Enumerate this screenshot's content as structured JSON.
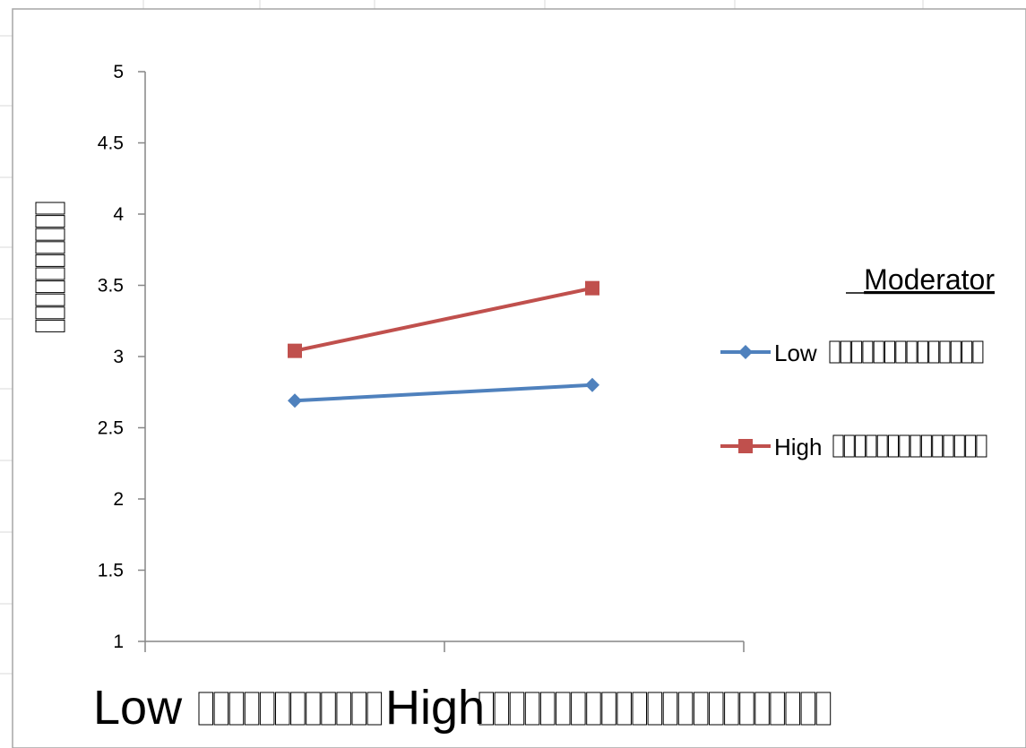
{
  "chart_data": {
    "type": "line",
    "title": "",
    "xlabel": "",
    "ylabel": "",
    "categories": [
      "Low",
      "High"
    ],
    "ylim": [
      1,
      5
    ],
    "yticks": [
      1,
      1.5,
      2,
      2.5,
      3,
      3.5,
      4,
      4.5,
      5
    ],
    "grid": false,
    "legend": {
      "title": "Moderator",
      "placement": "right"
    },
    "series": [
      {
        "name": "Low",
        "color": "#4F81BD",
        "marker": "diamond",
        "values": [
          2.69,
          2.8
        ]
      },
      {
        "name": "High",
        "color": "#C0504D",
        "marker": "square",
        "values": [
          3.04,
          3.48
        ]
      }
    ]
  }
}
